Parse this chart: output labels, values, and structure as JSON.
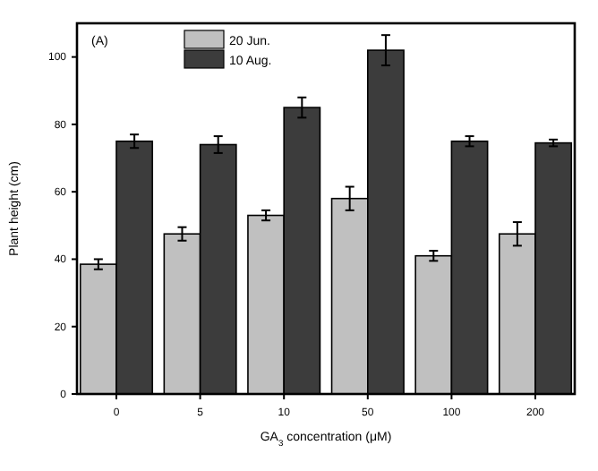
{
  "chart_data": {
    "type": "bar",
    "xlabel": "GA$_{3}$ concentration (μM)",
    "ylabel": "Plant height (cm)",
    "categories": [
      "0",
      "5",
      "10",
      "50",
      "100",
      "200"
    ],
    "series": [
      {
        "name": "20 Jun.",
        "color": "#c0c0c0",
        "values": [
          38.5,
          47.5,
          53,
          58,
          41,
          47.5
        ],
        "errors": [
          1.5,
          2,
          1.5,
          3.5,
          1.5,
          3.5
        ]
      },
      {
        "name": "10 Aug.",
        "color": "#3c3c3c",
        "values": [
          75,
          74,
          85,
          102,
          75,
          74.5
        ],
        "errors": [
          2,
          2.5,
          3,
          4.5,
          1.5,
          1
        ]
      }
    ],
    "ylim": [
      0,
      110
    ],
    "yticks": [
      0,
      20,
      40,
      60,
      80,
      100
    ],
    "legend": "top left",
    "annotations": [
      "(A)"
    ]
  }
}
